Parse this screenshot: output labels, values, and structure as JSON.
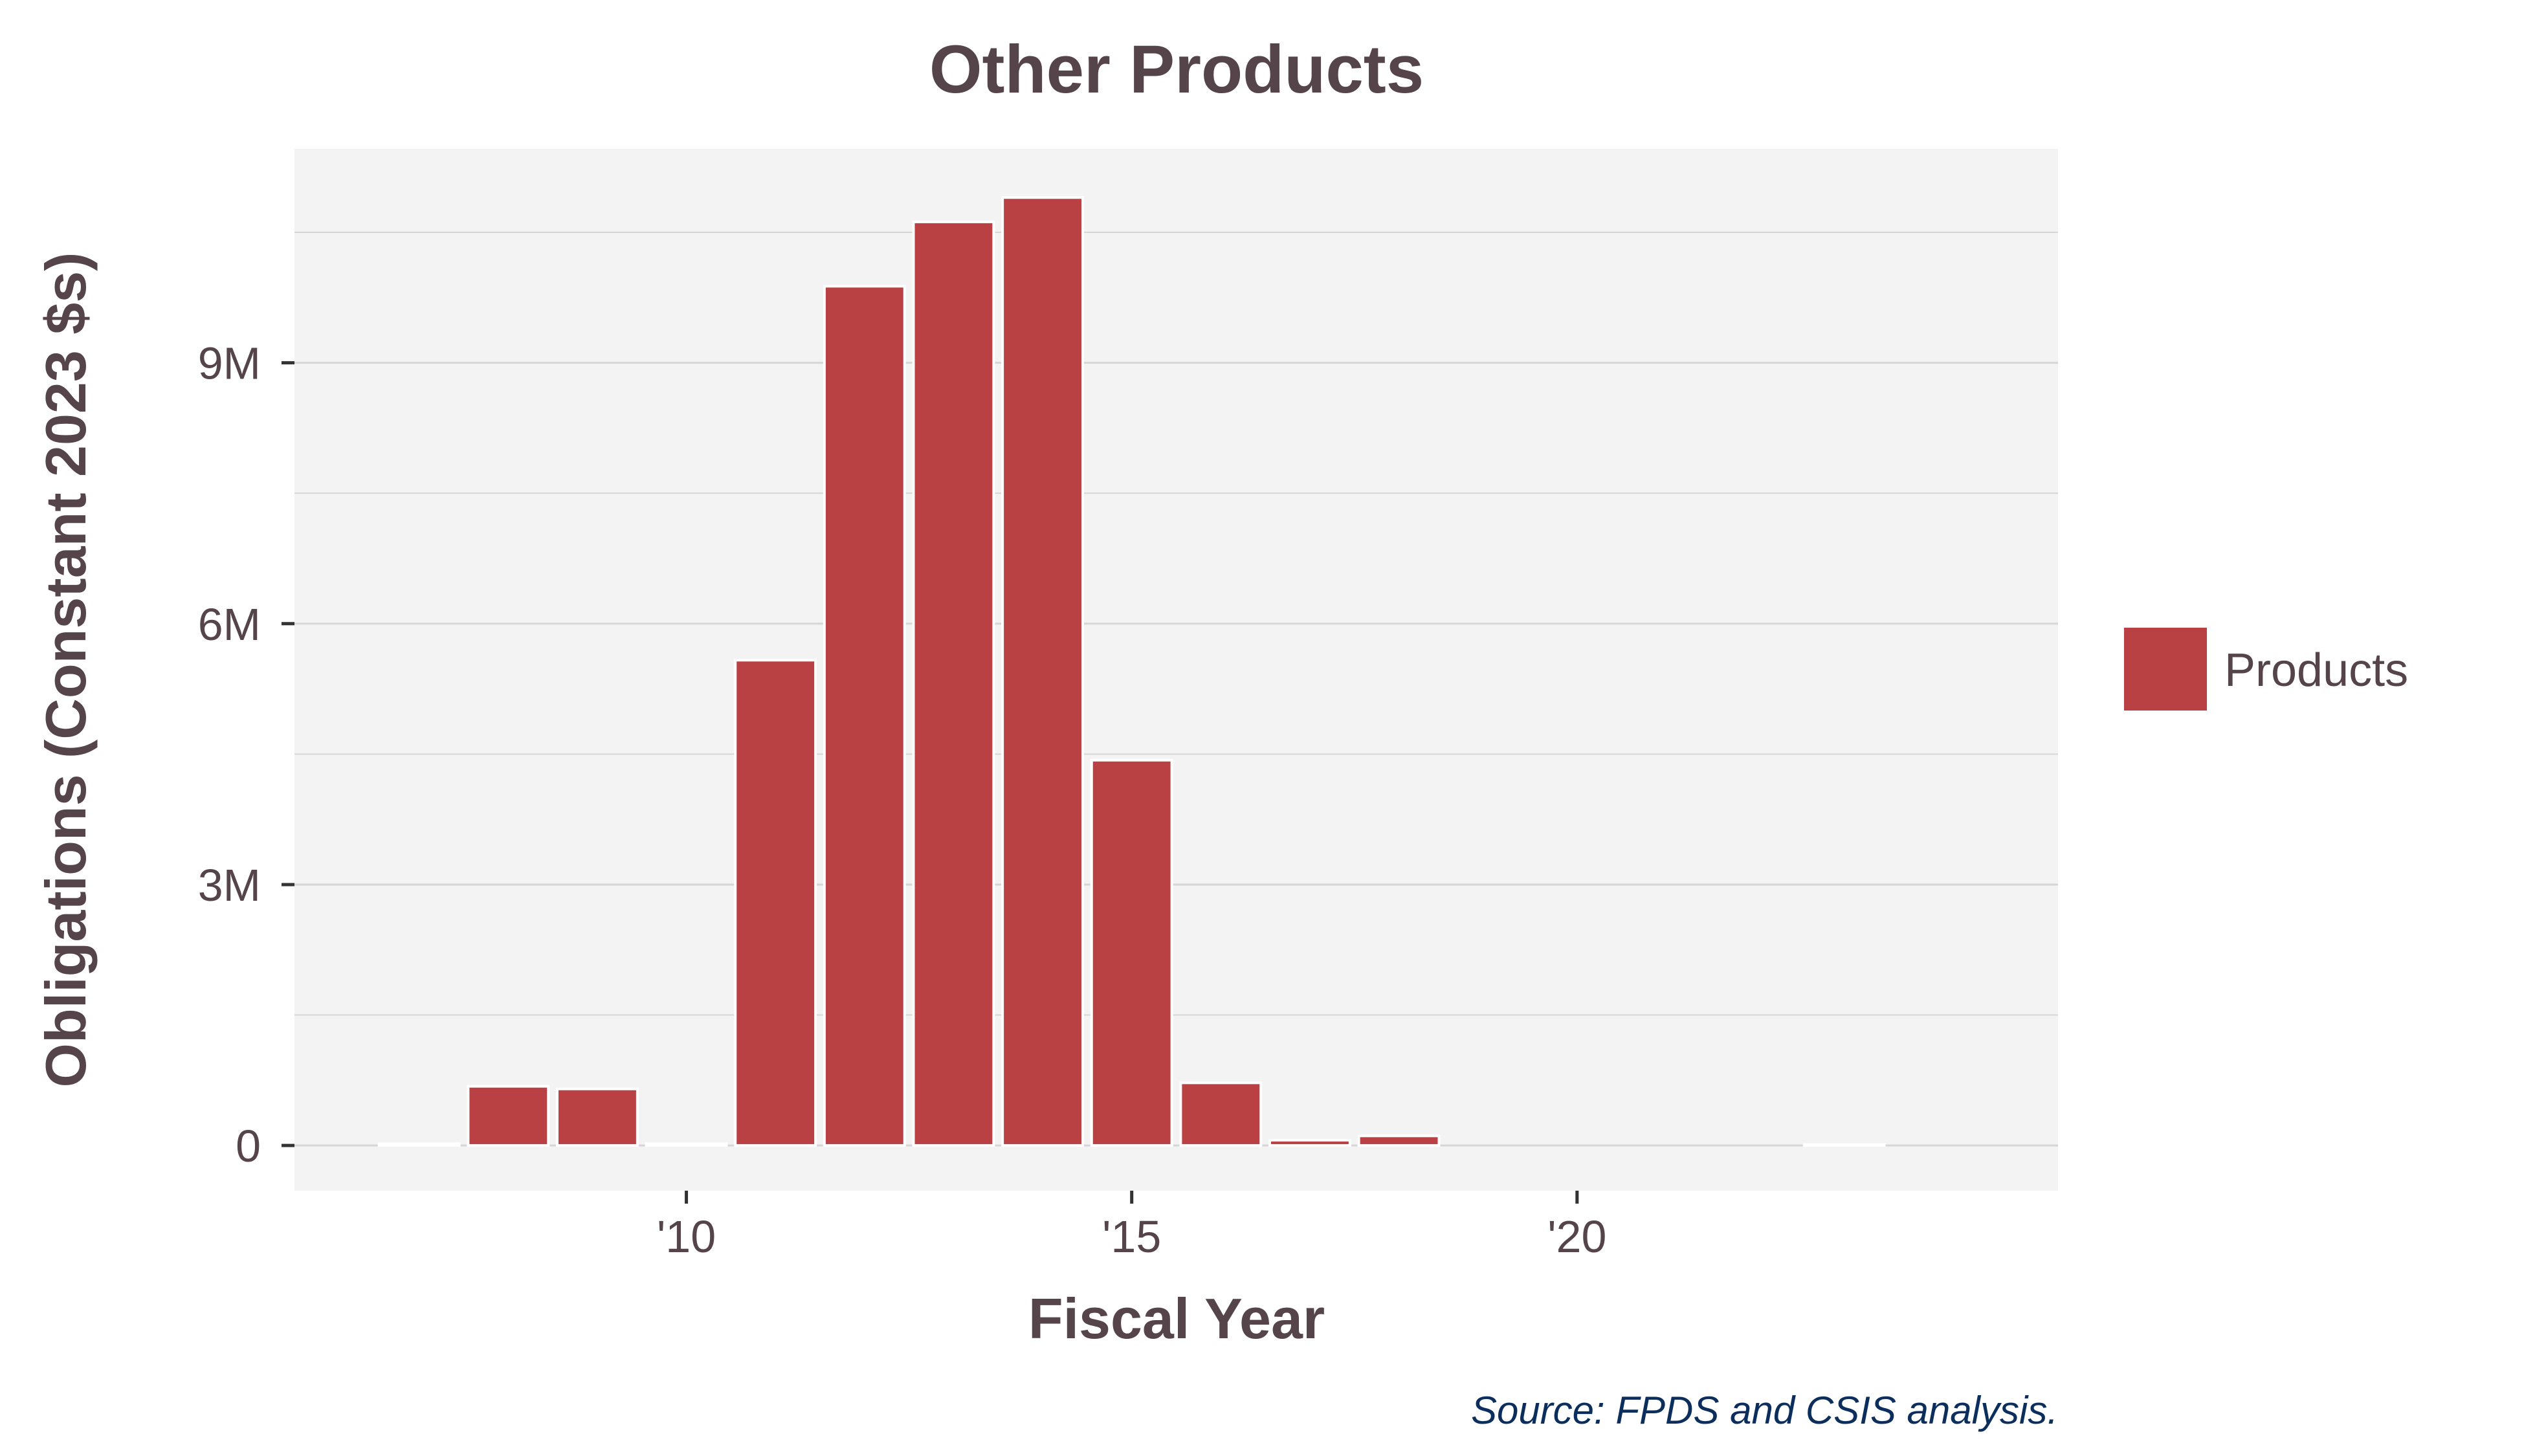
{
  "chart_data": {
    "type": "bar",
    "title": "Other Products",
    "xlabel": "Fiscal Year",
    "ylabel": "Obligations (Constant 2023 $s)",
    "caption": "Source: FPDS and CSIS analysis.",
    "x": [
      2007,
      2008,
      2009,
      2010,
      2011,
      2012,
      2013,
      2014,
      2015,
      2016,
      2017,
      2018,
      2023
    ],
    "series": [
      {
        "name": "Products",
        "color": "#b94144",
        "values": [
          20000,
          680000,
          650000,
          20000,
          5580000,
          9880000,
          10620000,
          10900000,
          4430000,
          720000,
          60000,
          110000,
          10000
        ]
      }
    ],
    "xlim": [
      2005.6,
      2025.4
    ],
    "ylim": [
      -520000,
      11460000
    ],
    "x_ticks": [
      {
        "value": 2010,
        "label": "'10"
      },
      {
        "value": 2015,
        "label": "'15"
      },
      {
        "value": 2020,
        "label": "'20"
      }
    ],
    "y_ticks": [
      {
        "value": 0,
        "label": "0"
      },
      {
        "value": 3000000,
        "label": "3M"
      },
      {
        "value": 6000000,
        "label": "6M"
      },
      {
        "value": 9000000,
        "label": "9M"
      }
    ],
    "grid": true,
    "legend_position": "right",
    "panel_color": "#f3f3f3",
    "grid_color": "#d6d6d6"
  }
}
